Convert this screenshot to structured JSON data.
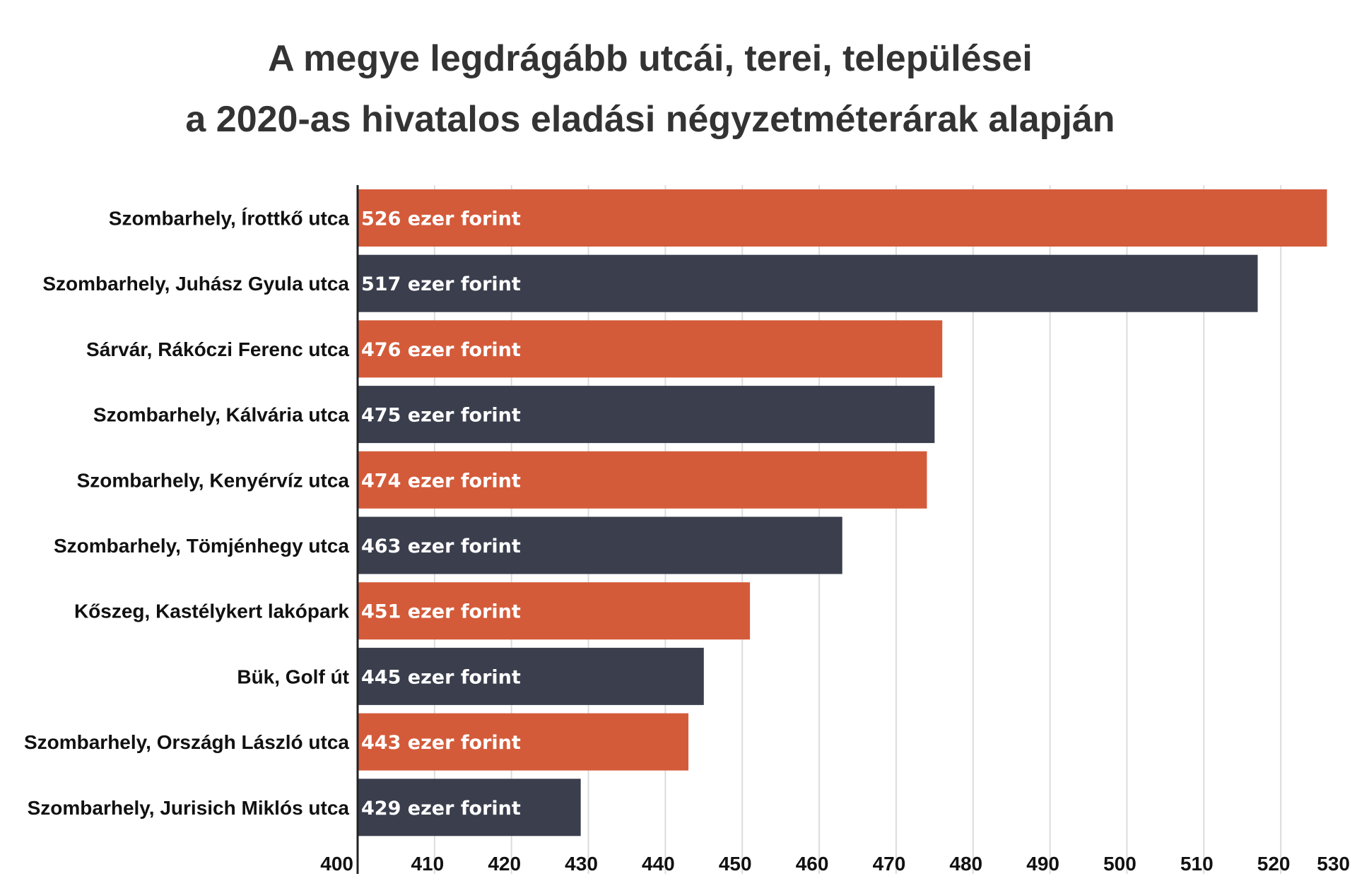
{
  "chart_data": {
    "type": "bar",
    "orientation": "horizontal",
    "title_lines": [
      "A megye legdrágább utcái, terei, települései",
      "a 2020-as hivatalos eladási négyzetméterárak alapján"
    ],
    "categories": [
      "Szombarhely, Írottkő utca",
      "Szombarhely, Juhász Gyula utca",
      "Sárvár, Rákóczi Ferenc utca",
      "Szombarhely, Kálvária utca",
      "Szombarhely, Kenyérvíz utca",
      "Szombarhely, Tömjénhegy utca",
      "Kőszeg, Kastélykert lakópark",
      "Bük, Golf út",
      "Szombarhely, Országh László utca",
      "Szombarhely, Jurisich Miklós utca"
    ],
    "values": [
      526,
      517,
      476,
      475,
      474,
      463,
      451,
      445,
      443,
      429
    ],
    "data_labels": [
      "526 ezer forint",
      "517 ezer forint",
      "476 ezer forint",
      "475 ezer forint",
      "474 ezer forint",
      "463 ezer forint",
      "451 ezer forint",
      "445 ezer forint",
      "443 ezer forint",
      "429 ezer forint"
    ],
    "xlim": [
      400,
      530
    ],
    "xticks": [
      400,
      410,
      420,
      430,
      440,
      450,
      460,
      470,
      480,
      490,
      500,
      510,
      520,
      530
    ],
    "grid": true,
    "colors": [
      "#d45b3a",
      "#3a3e4d"
    ]
  }
}
